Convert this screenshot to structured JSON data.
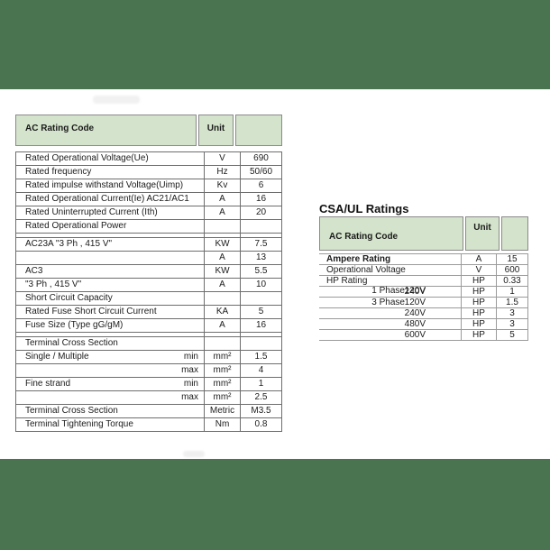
{
  "colors": {
    "band_green": "#4a7350",
    "header_green": "#d4e3cb"
  },
  "left_table": {
    "header": {
      "col1": "AC Rating Code",
      "col2": "Unit",
      "col3": ""
    },
    "rows": [
      {
        "label": "Rated Operational Voltage(Ue)",
        "sub": "",
        "unit": "V",
        "value": "690"
      },
      {
        "label": "Rated frequency",
        "sub": "",
        "unit": "Hz",
        "value": "50/60"
      },
      {
        "label": "Rated impulse withstand Voltage(Uimp)",
        "sub": "",
        "unit": "Kv",
        "value": "6"
      },
      {
        "label": "Rated Operational Current(Ie) AC21/AC1",
        "sub": "",
        "unit": "A",
        "value": "16"
      },
      {
        "label": "Rated Uninterrupted Current (Ith)",
        "sub": "",
        "unit": "A",
        "value": "20"
      },
      {
        "label": "Rated Operational Power",
        "sub": "",
        "unit": "",
        "value": ""
      },
      {
        "spacer": true
      },
      {
        "label": "AC23A \"3 Ph , 415 V\"",
        "sub": "",
        "unit": "KW",
        "value": "7.5"
      },
      {
        "label": "",
        "sub": "",
        "unit": "A",
        "value": "13"
      },
      {
        "label": "AC3",
        "sub": "",
        "unit": "KW",
        "value": "5.5"
      },
      {
        "label": "\"3 Ph , 415 V\"",
        "sub": "",
        "unit": "A",
        "value": "10"
      },
      {
        "label": "Short Circuit Capacity",
        "sub": "",
        "unit": "",
        "value": ""
      },
      {
        "label": "Rated Fuse Short Circuit Current",
        "sub": "",
        "unit": "KA",
        "value": "5"
      },
      {
        "label": "Fuse Size (Type gG/gM)",
        "sub": "",
        "unit": "A",
        "value": "16"
      },
      {
        "spacer": true
      },
      {
        "label": "Terminal Cross Section",
        "sub": "",
        "unit": "",
        "value": ""
      },
      {
        "label": "Single /  Multiple",
        "sub": "min",
        "unit": "mm²",
        "value": "1.5"
      },
      {
        "label": "",
        "sub": "max",
        "unit": "mm²",
        "value": "4"
      },
      {
        "label": "Fine strand",
        "sub": "min",
        "unit": "mm²",
        "value": "1"
      },
      {
        "label": "",
        "sub": "max",
        "unit": "mm²",
        "value": "2.5"
      },
      {
        "label": "Terminal Cross Section",
        "sub": "",
        "unit": "Metric",
        "value": "M3.5"
      },
      {
        "label": "Terminal Tightening  Torque",
        "sub": "",
        "unit": "Nm",
        "value": "0.8"
      }
    ]
  },
  "right_table": {
    "title": "CSA/UL Ratings",
    "header": {
      "col1": "AC Rating Code",
      "col2": "Unit",
      "col3": ""
    },
    "rows": [
      {
        "group": "Ampere Rating",
        "bold": true,
        "phase": "",
        "volt": "",
        "unit": "A",
        "value": "15"
      },
      {
        "group": "Operational Voltage",
        "phase": "",
        "volt": "",
        "unit": "V",
        "value": "600"
      },
      {
        "group": "HP Rating",
        "phase": "1 Phase",
        "volt": "120V",
        "unit": "HP",
        "value": "0.33"
      },
      {
        "group": "",
        "phase": "",
        "volt": "240V",
        "unit": "HP",
        "value": "1"
      },
      {
        "group": "",
        "phase": "3 Phase",
        "volt": "120V",
        "unit": "HP",
        "value": "1.5"
      },
      {
        "group": "",
        "phase": "",
        "volt": "240V",
        "unit": "HP",
        "value": "3"
      },
      {
        "group": "",
        "phase": "",
        "volt": "480V",
        "unit": "HP",
        "value": "3"
      },
      {
        "group": "",
        "phase": "",
        "volt": "600V",
        "unit": "HP",
        "value": "5"
      }
    ]
  }
}
